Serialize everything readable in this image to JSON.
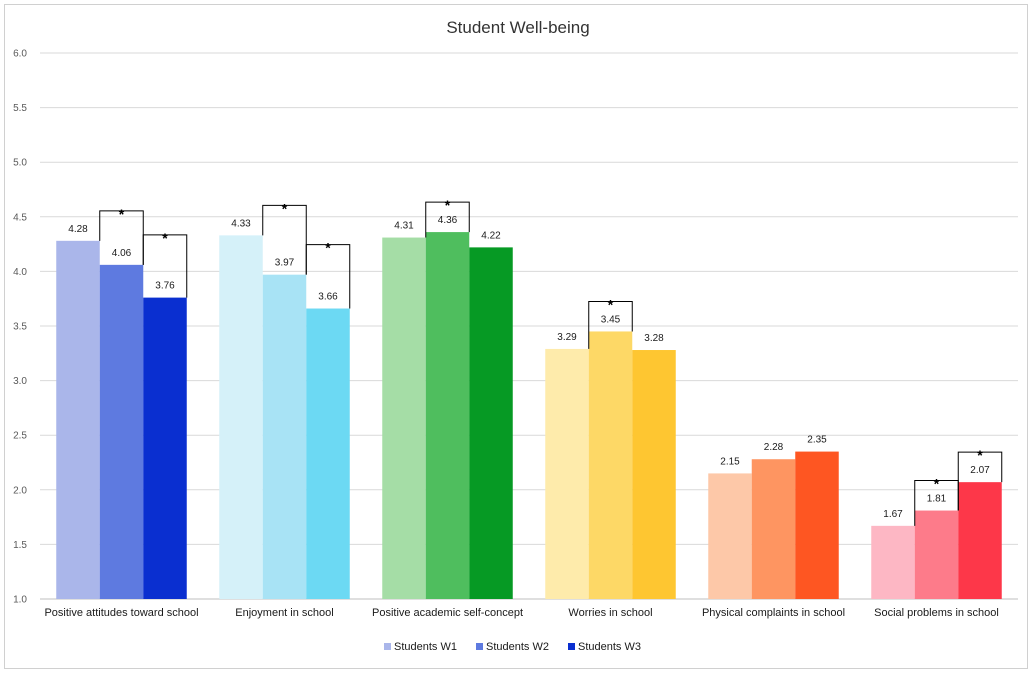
{
  "chart_data": {
    "type": "bar",
    "title": "Student Well-being",
    "xlabel": "",
    "ylabel": "",
    "ylim": [
      1.0,
      6.0
    ],
    "yticks": [
      "1.0",
      "1.5",
      "2.0",
      "2.5",
      "3.0",
      "3.5",
      "4.0",
      "4.5",
      "5.0",
      "5.5",
      "6.0"
    ],
    "grid": true,
    "legend_position": "bottom",
    "categories": [
      "Positive attitudes toward school",
      "Enjoyment in school",
      "Positive academic self-concept",
      "Worries in school",
      "Physical complaints in school",
      "Social problems in school"
    ],
    "series": [
      {
        "name": "Students W1",
        "values": [
          4.28,
          4.33,
          4.31,
          3.29,
          2.15,
          1.67
        ]
      },
      {
        "name": "Students W2",
        "values": [
          4.06,
          3.97,
          4.36,
          3.45,
          2.28,
          1.81
        ]
      },
      {
        "name": "Students W3",
        "values": [
          3.76,
          3.66,
          4.22,
          3.28,
          2.35,
          2.07
        ]
      }
    ],
    "value_labels": [
      [
        "4.28",
        "4.06",
        "3.76"
      ],
      [
        "4.33",
        "3.97",
        "3.66"
      ],
      [
        "4.31",
        "4.36",
        "4.22"
      ],
      [
        "3.29",
        "3.45",
        "3.28"
      ],
      [
        "2.15",
        "2.28",
        "2.35"
      ],
      [
        "1.67",
        "1.81",
        "2.07"
      ]
    ],
    "legend_colors": [
      "#aab6ea",
      "#5e7ae0",
      "#0a2fd0"
    ],
    "colors": [
      [
        "#aab6ea",
        "#5e7ae0",
        "#0a2fd0"
      ],
      [
        "#d5f1f9",
        "#a8e3f5",
        "#6cd9f3"
      ],
      [
        "#a5dda6",
        "#4fbe5e",
        "#069a24"
      ],
      [
        "#feebab",
        "#fdd866",
        "#fec631"
      ],
      [
        "#fdc8a8",
        "#fe9561",
        "#fe5622"
      ],
      [
        "#fdb7c4",
        "#fd7b8a",
        "#fd3749"
      ]
    ],
    "significance_marker": "*",
    "significance": [
      {
        "category": 0,
        "from": 0,
        "to": 1
      },
      {
        "category": 0,
        "from": 1,
        "to": 2
      },
      {
        "category": 1,
        "from": 0,
        "to": 1
      },
      {
        "category": 1,
        "from": 1,
        "to": 2
      },
      {
        "category": 2,
        "from": 0,
        "to": 1
      },
      {
        "category": 3,
        "from": 0,
        "to": 1
      },
      {
        "category": 5,
        "from": 0,
        "to": 1
      },
      {
        "category": 5,
        "from": 1,
        "to": 2
      }
    ]
  }
}
